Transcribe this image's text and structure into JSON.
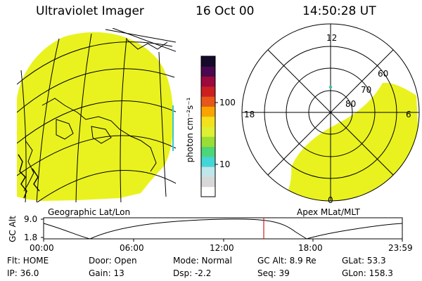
{
  "header": {
    "instrument": "Ultraviolet Imager",
    "date": "16 Oct 00",
    "time": "14:50:28 UT"
  },
  "colorbar": {
    "unit_label": "photon cm⁻²s⁻¹",
    "ticks": [
      "100",
      "10"
    ],
    "colors": [
      "#ffffff",
      "#d8d8d8",
      "#bfe6ea",
      "#44d6d6",
      "#4cd67a",
      "#9add34",
      "#ddf034",
      "#f2e11c",
      "#f9a400",
      "#e8571a",
      "#cc1f1f",
      "#9a0a3c",
      "#4a084e",
      "#140a2a"
    ]
  },
  "left_panel": {
    "caption": "Geographic Lat/Lon",
    "fill_color": "#e9f21e"
  },
  "right_panel": {
    "caption": "Apex MLat/MLT",
    "mlt_labels": {
      "top": "12",
      "left": "18",
      "right": "6",
      "bottom": "0"
    },
    "lat_labels": [
      "60",
      "70",
      "80"
    ],
    "fill_color": "#e9f21e"
  },
  "altitude_plot": {
    "axis_label": "GC Alt",
    "y_ticks": [
      "9.0",
      "1.8"
    ],
    "x_ticks": [
      "00:00",
      "06:00",
      "12:00",
      "18:00",
      "23:59"
    ],
    "marker_color": "#cc2020"
  },
  "footer": {
    "row1": [
      "Flt: HOME",
      "Door: Open",
      "Mode: Normal",
      "GC Alt: 8.9 Re",
      "GLat:  53.3"
    ],
    "row2": [
      "IP: 36.0",
      "Gain: 13",
      "Dsp:    -2.2",
      "Seq: 39",
      "GLon: 158.3"
    ]
  }
}
